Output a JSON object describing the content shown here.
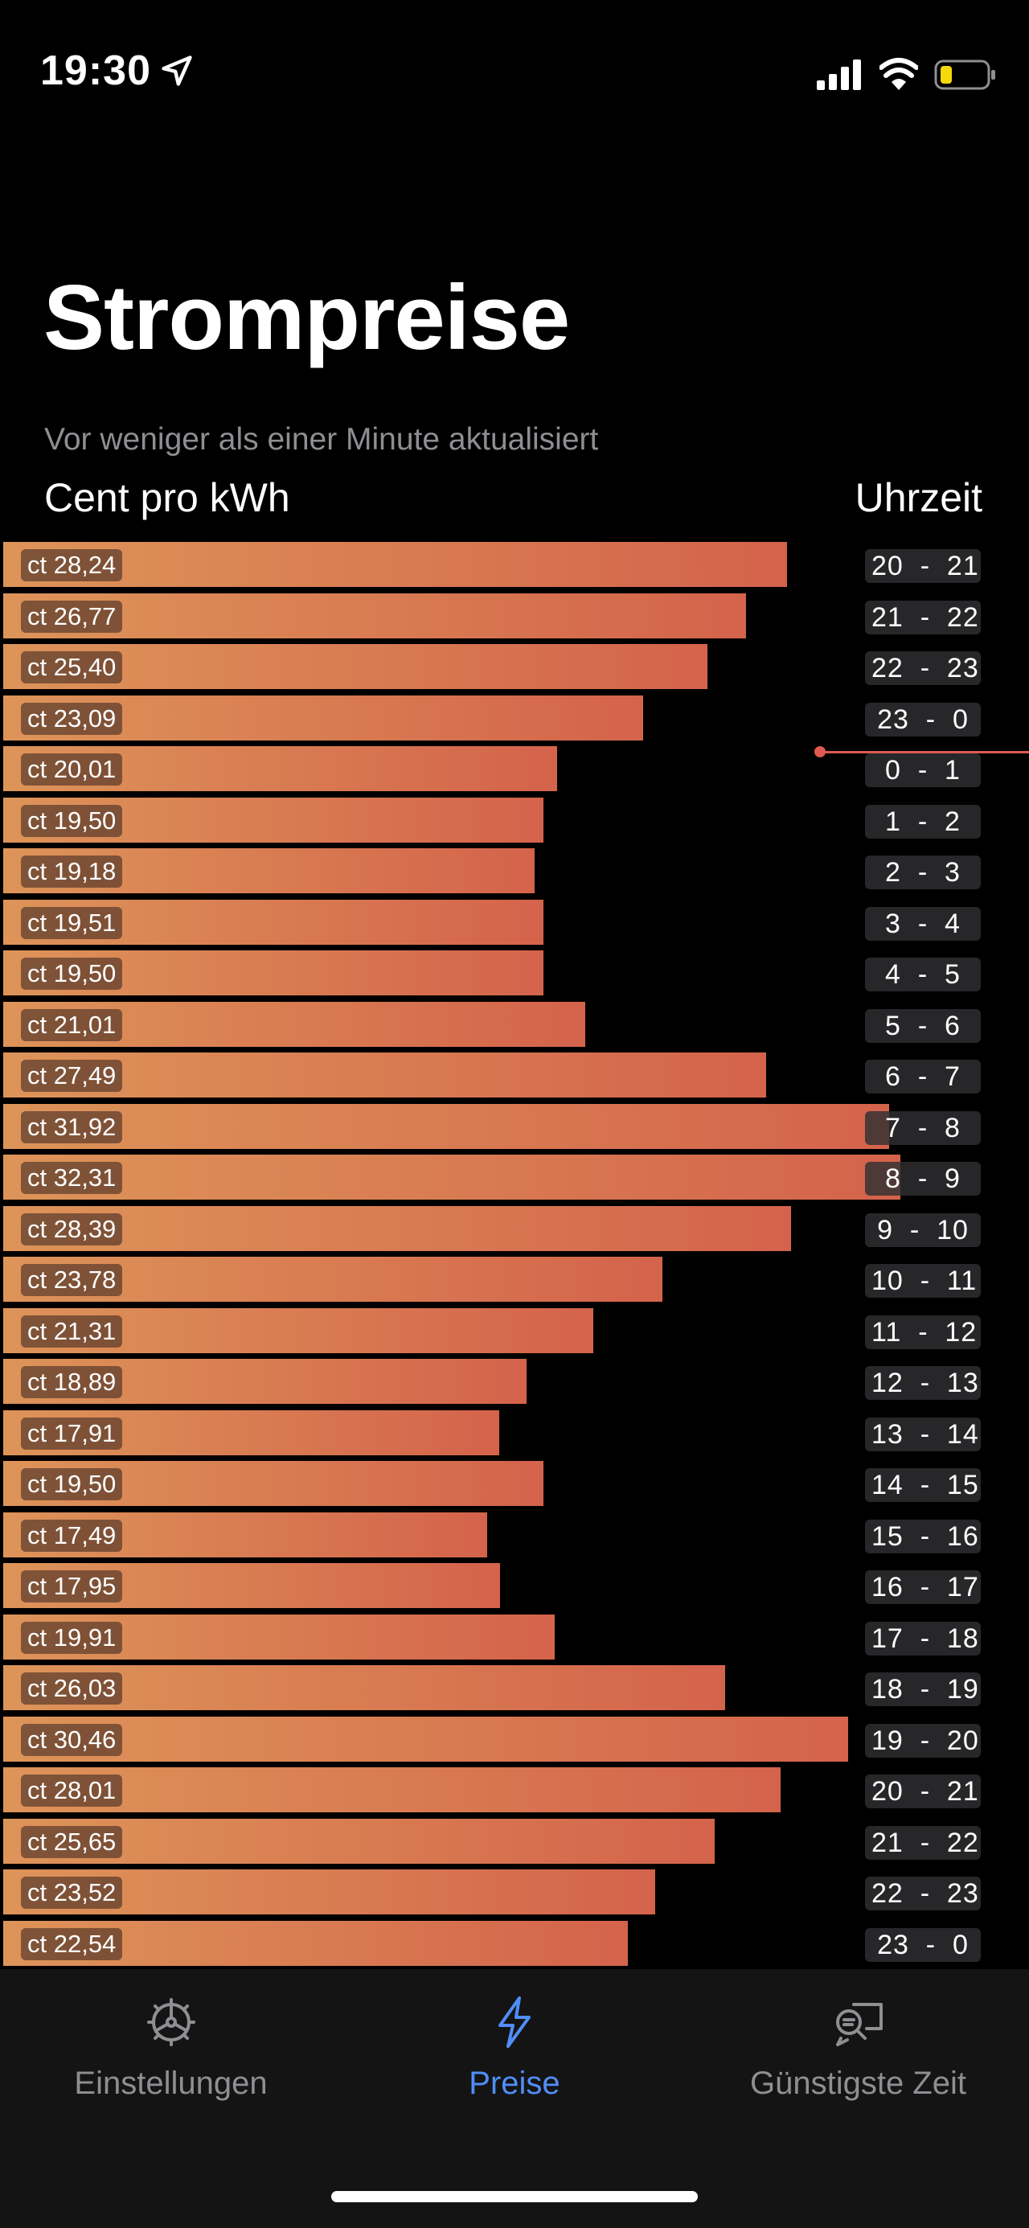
{
  "status_bar": {
    "time": "19:30"
  },
  "title": "Strompreise",
  "updated_text": "Vor weniger als einer Minute aktualisiert",
  "unit_label": "Cent pro kWh",
  "time_label": "Uhrzeit",
  "accent_color": "#4f8ef7",
  "bar_gradient": [
    "#dd9459",
    "#d4634b"
  ],
  "current_hour_index": 3,
  "rows": [
    {
      "price": "ct 28,24",
      "hours": "20  -  21"
    },
    {
      "price": "ct 26,77",
      "hours": "21  -  22"
    },
    {
      "price": "ct 25,40",
      "hours": "22  -  23"
    },
    {
      "price": "ct 23,09",
      "hours": "23  -  0"
    },
    {
      "price": "ct 20,01",
      "hours": "0  -  1"
    },
    {
      "price": "ct 19,50",
      "hours": "1  -  2"
    },
    {
      "price": "ct 19,18",
      "hours": "2  -  3"
    },
    {
      "price": "ct 19,51",
      "hours": "3  -  4"
    },
    {
      "price": "ct 19,50",
      "hours": "4  -  5"
    },
    {
      "price": "ct 21,01",
      "hours": "5  -  6"
    },
    {
      "price": "ct 27,49",
      "hours": "6  -  7"
    },
    {
      "price": "ct 31,92",
      "hours": "7  -  8"
    },
    {
      "price": "ct 32,31",
      "hours": "8  -  9"
    },
    {
      "price": "ct 28,39",
      "hours": "9  -  10"
    },
    {
      "price": "ct 23,78",
      "hours": "10  -  11"
    },
    {
      "price": "ct 21,31",
      "hours": "11  -  12"
    },
    {
      "price": "ct 18,89",
      "hours": "12  -  13"
    },
    {
      "price": "ct 17,91",
      "hours": "13  -  14"
    },
    {
      "price": "ct 19,50",
      "hours": "14  -  15"
    },
    {
      "price": "ct 17,49",
      "hours": "15  -  16"
    },
    {
      "price": "ct 17,95",
      "hours": "16  -  17"
    },
    {
      "price": "ct 19,91",
      "hours": "17  -  18"
    },
    {
      "price": "ct 26,03",
      "hours": "18  -  19"
    },
    {
      "price": "ct 30,46",
      "hours": "19  -  20"
    },
    {
      "price": "ct 28,01",
      "hours": "20  -  21"
    },
    {
      "price": "ct 25,65",
      "hours": "21  -  22"
    },
    {
      "price": "ct 23,52",
      "hours": "22  -  23"
    },
    {
      "price": "ct 22,54",
      "hours": "23  -  0"
    }
  ],
  "tabs": [
    {
      "label": "Einstellungen",
      "icon": "gear-icon",
      "active": false
    },
    {
      "label": "Preise",
      "icon": "bolt-icon",
      "active": true
    },
    {
      "label": "Günstigste Zeit",
      "icon": "search-bubble-icon",
      "active": false
    }
  ]
}
